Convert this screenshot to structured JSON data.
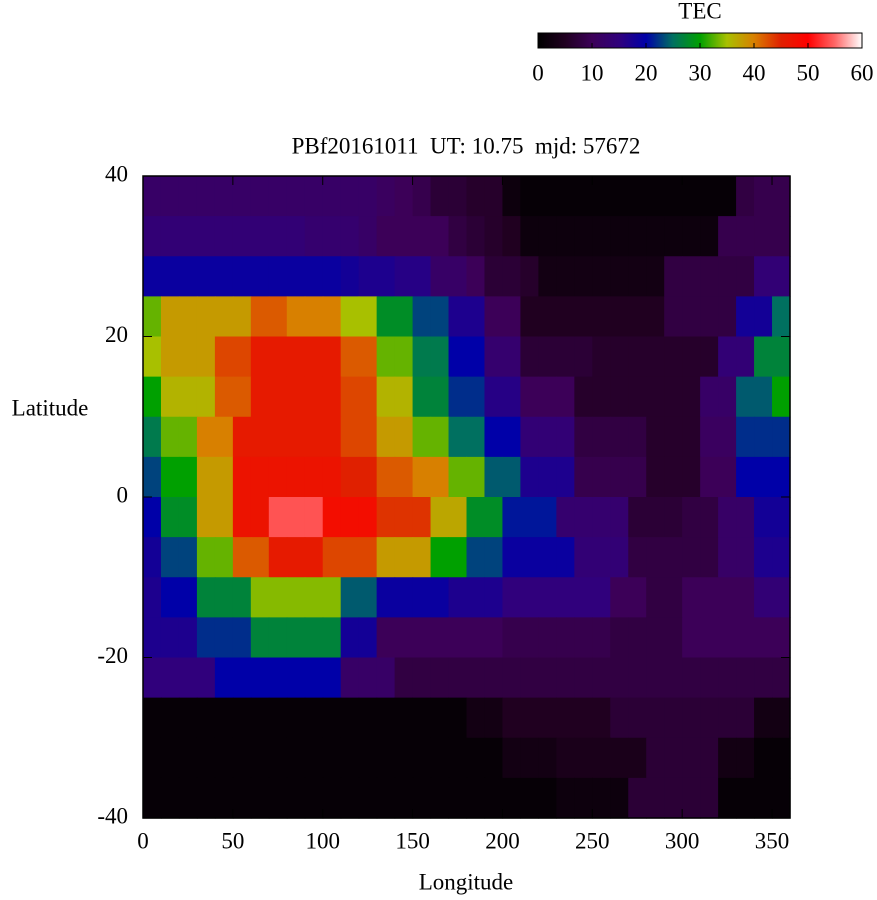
{
  "chart_data": {
    "type": "heatmap",
    "title": "PBf20161011  UT: 10.75  mjd: 57672",
    "xlabel": "Longitude",
    "ylabel": "Latitude",
    "colorbar_title": "TEC",
    "xlim": [
      0,
      360
    ],
    "xticks": [
      0,
      50,
      100,
      150,
      200,
      250,
      300,
      350
    ],
    "ylim": [
      -40,
      40
    ],
    "yticks": [
      -40,
      -20,
      0,
      20,
      40
    ],
    "zlim": [
      0,
      60
    ],
    "zticks": [
      0,
      10,
      20,
      30,
      40,
      50,
      60
    ],
    "colors": [
      "#000000",
      "#200020",
      "#3c0058",
      "#30007c",
      "#0000a8",
      "#007060",
      "#00a000",
      "#a8c000",
      "#d88000",
      "#e02000",
      "#ff0000",
      "#ff6868",
      "#ffffff"
    ],
    "x": [
      5,
      15,
      25,
      35,
      45,
      55,
      65,
      75,
      85,
      95,
      105,
      115,
      125,
      135,
      145,
      155,
      165,
      175,
      185,
      195,
      205,
      215,
      225,
      235,
      245,
      255,
      265,
      275,
      285,
      295,
      305,
      315,
      325,
      335,
      345,
      355
    ],
    "y": [
      37.5,
      32.5,
      27.5,
      22.5,
      17.5,
      12.5,
      7.5,
      2.5,
      -2.5,
      -7.5,
      -12.5,
      -17.5,
      -22.5,
      -27.5,
      -32.5,
      -37.5
    ],
    "z": [
      [
        12,
        12,
        12,
        12,
        12,
        12,
        12,
        12,
        12,
        12,
        12,
        12,
        12,
        11,
        10,
        9,
        7,
        7,
        6,
        6,
        2,
        1,
        1,
        1,
        1,
        1,
        1,
        1,
        1,
        1,
        1,
        1,
        1,
        8,
        9,
        9
      ],
      [
        14,
        14,
        14,
        14,
        14,
        14,
        14,
        14,
        14,
        13,
        13,
        13,
        12,
        10,
        10,
        10,
        10,
        8,
        7,
        6,
        5,
        2,
        2,
        2,
        2,
        2,
        2,
        2,
        2,
        2,
        2,
        2,
        9,
        9,
        9,
        9
      ],
      [
        19,
        19,
        19,
        19,
        19,
        19,
        19,
        19,
        19,
        19,
        19,
        18,
        17,
        17,
        16,
        16,
        12,
        12,
        10,
        7,
        7,
        6,
        3,
        3,
        3,
        3,
        3,
        3,
        3,
        8,
        8,
        8,
        8,
        8,
        14,
        14
      ],
      [
        33,
        38,
        38,
        38,
        38,
        38,
        42,
        42,
        40,
        40,
        40,
        35,
        35,
        28,
        28,
        23,
        23,
        17,
        17,
        10,
        10,
        5,
        5,
        5,
        5,
        5,
        5,
        5,
        5,
        8,
        8,
        8,
        8,
        18,
        18,
        25
      ],
      [
        35,
        38,
        38,
        38,
        43,
        43,
        46,
        46,
        46,
        46,
        46,
        42,
        42,
        33,
        33,
        26,
        26,
        20,
        20,
        13,
        13,
        7,
        7,
        7,
        7,
        6,
        6,
        6,
        6,
        6,
        6,
        6,
        14,
        14,
        27,
        27
      ],
      [
        30,
        36,
        36,
        36,
        42,
        42,
        46,
        46,
        46,
        46,
        46,
        43,
        43,
        36,
        36,
        27,
        27,
        22,
        22,
        16,
        16,
        10,
        10,
        10,
        6,
        6,
        6,
        6,
        6,
        6,
        6,
        12,
        12,
        24,
        24,
        30
      ],
      [
        26,
        33,
        33,
        40,
        40,
        46,
        46,
        46,
        46,
        46,
        46,
        43,
        43,
        38,
        38,
        33,
        33,
        25,
        25,
        20,
        20,
        14,
        14,
        14,
        8,
        8,
        8,
        8,
        6,
        6,
        6,
        11,
        11,
        22,
        22,
        22
      ],
      [
        23,
        30,
        30,
        38,
        38,
        47,
        47,
        47,
        47,
        47,
        47,
        45,
        45,
        42,
        42,
        40,
        40,
        33,
        33,
        24,
        24,
        17,
        17,
        17,
        9,
        9,
        9,
        9,
        6,
        6,
        6,
        10,
        10,
        20,
        20,
        20
      ],
      [
        20,
        28,
        28,
        38,
        38,
        47,
        47,
        54,
        54,
        54,
        48,
        48,
        48,
        44,
        44,
        44,
        37,
        37,
        28,
        28,
        21,
        21,
        21,
        13,
        13,
        13,
        13,
        7,
        7,
        7,
        8,
        8,
        12,
        12,
        18,
        18
      ],
      [
        18,
        23,
        23,
        33,
        33,
        42,
        42,
        46,
        46,
        46,
        43,
        43,
        43,
        38,
        38,
        38,
        30,
        30,
        23,
        23,
        19,
        19,
        19,
        19,
        14,
        14,
        14,
        8,
        8,
        8,
        8,
        8,
        12,
        12,
        17,
        17
      ],
      [
        17,
        20,
        20,
        27,
        27,
        27,
        34,
        34,
        34,
        34,
        34,
        24,
        24,
        19,
        19,
        19,
        19,
        17,
        17,
        17,
        15,
        15,
        15,
        15,
        15,
        15,
        10,
        10,
        8,
        8,
        10,
        10,
        10,
        10,
        14,
        14
      ],
      [
        17,
        17,
        17,
        22,
        22,
        22,
        27,
        27,
        27,
        27,
        27,
        18,
        18,
        10,
        10,
        10,
        10,
        10,
        10,
        10,
        9,
        9,
        9,
        9,
        9,
        9,
        8,
        8,
        8,
        8,
        10,
        10,
        10,
        10,
        10,
        10
      ],
      [
        15,
        15,
        15,
        15,
        20,
        20,
        20,
        20,
        20,
        20,
        20,
        12,
        12,
        12,
        8,
        8,
        8,
        8,
        8,
        8,
        8,
        8,
        8,
        8,
        8,
        8,
        8,
        8,
        8,
        8,
        8,
        8,
        8,
        8,
        8,
        8
      ],
      [
        1,
        1,
        1,
        1,
        1,
        1,
        1,
        1,
        1,
        1,
        1,
        1,
        1,
        1,
        1,
        1,
        1,
        1,
        3,
        3,
        5,
        5,
        5,
        5,
        5,
        5,
        7,
        7,
        7,
        7,
        7,
        7,
        7,
        7,
        3,
        3
      ],
      [
        1,
        1,
        1,
        1,
        1,
        1,
        1,
        1,
        1,
        1,
        1,
        1,
        1,
        1,
        1,
        1,
        1,
        1,
        1,
        1,
        3,
        3,
        3,
        4,
        4,
        4,
        4,
        4,
        7,
        7,
        7,
        7,
        3,
        3,
        1,
        1
      ],
      [
        1,
        1,
        1,
        1,
        1,
        1,
        1,
        1,
        1,
        1,
        1,
        1,
        1,
        1,
        1,
        1,
        1,
        1,
        1,
        1,
        1,
        1,
        1,
        2,
        2,
        2,
        2,
        7,
        7,
        7,
        7,
        7,
        1,
        1,
        1,
        1
      ]
    ]
  }
}
